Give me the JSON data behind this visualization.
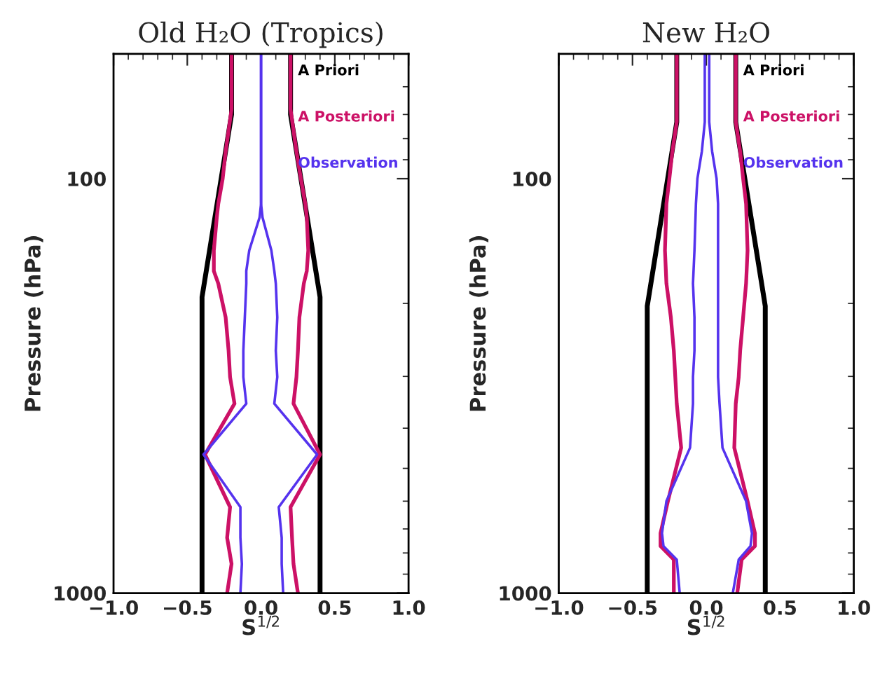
{
  "chart_data": [
    {
      "type": "line",
      "title": "Old H₂O (Tropics)",
      "xlabel": "S$^{1/2}$",
      "ylabel": "Pressure (hPa)",
      "log": "y",
      "xlim": [
        -1.0,
        1.0
      ],
      "xticks": [
        {
          "value": -1.0,
          "label": "−1.0"
        },
        {
          "value": -0.5,
          "label": "−0.5"
        },
        {
          "value": 0.0,
          "label": "0.0"
        },
        {
          "value": 0.5,
          "label": "0.5"
        },
        {
          "value": 1.0,
          "label": "1.0"
        }
      ],
      "ylim": [
        1000,
        50
      ],
      "yticks": [
        100,
        1000
      ],
      "legend": "top right",
      "grid": false,
      "series": [
        {
          "name": "A Priori",
          "color": "#000000",
          "x": [
            -0.2,
            -0.2,
            -0.4,
            -0.4
          ],
          "values": [
            50,
            70,
            193,
            1000
          ]
        },
        {
          "color": "#000000",
          "x": [
            0.2,
            0.2,
            0.4,
            0.4
          ],
          "values": [
            50,
            70,
            193,
            1000
          ]
        },
        {
          "name": "A Posteriori",
          "color": "#cc1166",
          "x": [
            -0.2,
            -0.2,
            -0.24,
            -0.26,
            -0.29,
            -0.3,
            -0.32,
            -0.32,
            -0.29,
            -0.24,
            -0.22,
            -0.21,
            -0.18,
            -0.38,
            -0.21,
            -0.23,
            -0.2,
            -0.23
          ],
          "values": [
            50,
            68,
            86,
            100,
            115,
            124,
            149,
            167,
            179,
            216,
            260,
            301,
            349,
            463,
            620,
            735,
            850,
            1000
          ]
        },
        {
          "color": "#cc1166",
          "x": [
            0.2,
            0.2,
            0.24,
            0.27,
            0.3,
            0.31,
            0.32,
            0.31,
            0.29,
            0.26,
            0.25,
            0.24,
            0.22,
            0.4,
            0.2,
            0.21,
            0.22,
            0.25
          ],
          "values": [
            50,
            68,
            86,
            100,
            115,
            124,
            149,
            167,
            179,
            216,
            260,
            301,
            349,
            463,
            620,
            735,
            850,
            1000
          ]
        },
        {
          "name": "Observation",
          "color": "#5533ee",
          "x": [
            0.0,
            0.0,
            0.0,
            0.0,
            0.0,
            -0.01,
            -0.08,
            -0.1,
            -0.1,
            -0.11,
            -0.12,
            -0.12,
            -0.1,
            -0.39,
            -0.14,
            -0.14,
            -0.13,
            -0.14
          ],
          "values": [
            50,
            68,
            86,
            100,
            115,
            124,
            149,
            167,
            179,
            216,
            260,
            301,
            349,
            463,
            620,
            735,
            850,
            1000
          ]
        },
        {
          "color": "#5533ee",
          "x": [
            0.0,
            0.0,
            0.0,
            0.0,
            0.0,
            0.01,
            0.07,
            0.09,
            0.1,
            0.11,
            0.1,
            0.11,
            0.09,
            0.38,
            0.12,
            0.14,
            0.14,
            0.15
          ],
          "values": [
            50,
            68,
            86,
            100,
            115,
            124,
            149,
            167,
            179,
            216,
            260,
            301,
            349,
            463,
            620,
            735,
            850,
            1000
          ]
        }
      ]
    },
    {
      "type": "line",
      "title": "New H₂O",
      "xlabel": "S$^{1/2}$",
      "ylabel": "Pressure (hPa)",
      "log": "y",
      "xlim": [
        -1.0,
        1.0
      ],
      "xticks": [
        {
          "value": -1.0,
          "label": "−1.0"
        },
        {
          "value": -0.5,
          "label": "−0.5"
        },
        {
          "value": 0.0,
          "label": "0.0"
        },
        {
          "value": 0.5,
          "label": "0.5"
        },
        {
          "value": 1.0,
          "label": "1.0"
        }
      ],
      "ylim": [
        1000,
        50
      ],
      "yticks": [
        100,
        1000
      ],
      "legend": "top right",
      "grid": false,
      "series": [
        {
          "name": "A Priori",
          "color": "#000000",
          "x": [
            -0.2,
            -0.2,
            -0.4,
            -0.4
          ],
          "values": [
            50,
            73,
            203,
            1000
          ]
        },
        {
          "color": "#000000",
          "x": [
            0.2,
            0.2,
            0.4,
            0.4
          ],
          "values": [
            50,
            73,
            203,
            1000
          ]
        },
        {
          "name": "A Posteriori",
          "color": "#cc1166",
          "x": [
            -0.2,
            -0.2,
            -0.23,
            -0.25,
            -0.27,
            -0.28,
            -0.27,
            -0.24,
            -0.22,
            -0.21,
            -0.2,
            -0.17,
            -0.26,
            -0.31,
            -0.31,
            -0.22,
            -0.22
          ],
          "values": [
            50,
            73,
            86,
            100,
            115,
            149,
            179,
            216,
            260,
            301,
            349,
            446,
            600,
            717,
            770,
            830,
            1000
          ]
        },
        {
          "color": "#cc1166",
          "x": [
            0.2,
            0.2,
            0.23,
            0.25,
            0.27,
            0.28,
            0.27,
            0.25,
            0.23,
            0.22,
            0.2,
            0.19,
            0.28,
            0.33,
            0.33,
            0.24,
            0.21
          ],
          "values": [
            50,
            73,
            86,
            100,
            115,
            149,
            179,
            216,
            260,
            301,
            349,
            446,
            600,
            717,
            770,
            830,
            1000
          ]
        },
        {
          "name": "Observation",
          "color": "#5533ee",
          "x": [
            -0.01,
            -0.01,
            -0.03,
            -0.06,
            -0.07,
            -0.08,
            -0.09,
            -0.08,
            -0.08,
            -0.09,
            -0.09,
            -0.11,
            -0.27,
            -0.3,
            -0.29,
            -0.2,
            -0.18
          ],
          "values": [
            50,
            73,
            86,
            100,
            115,
            149,
            179,
            216,
            260,
            301,
            349,
            446,
            600,
            717,
            770,
            830,
            1000
          ]
        },
        {
          "color": "#5533ee",
          "x": [
            0.02,
            0.02,
            0.04,
            0.07,
            0.08,
            0.08,
            0.08,
            0.08,
            0.08,
            0.08,
            0.09,
            0.11,
            0.27,
            0.31,
            0.3,
            0.22,
            0.18
          ],
          "values": [
            50,
            73,
            86,
            100,
            115,
            149,
            179,
            216,
            260,
            301,
            349,
            446,
            600,
            717,
            770,
            830,
            1000
          ]
        }
      ]
    }
  ]
}
